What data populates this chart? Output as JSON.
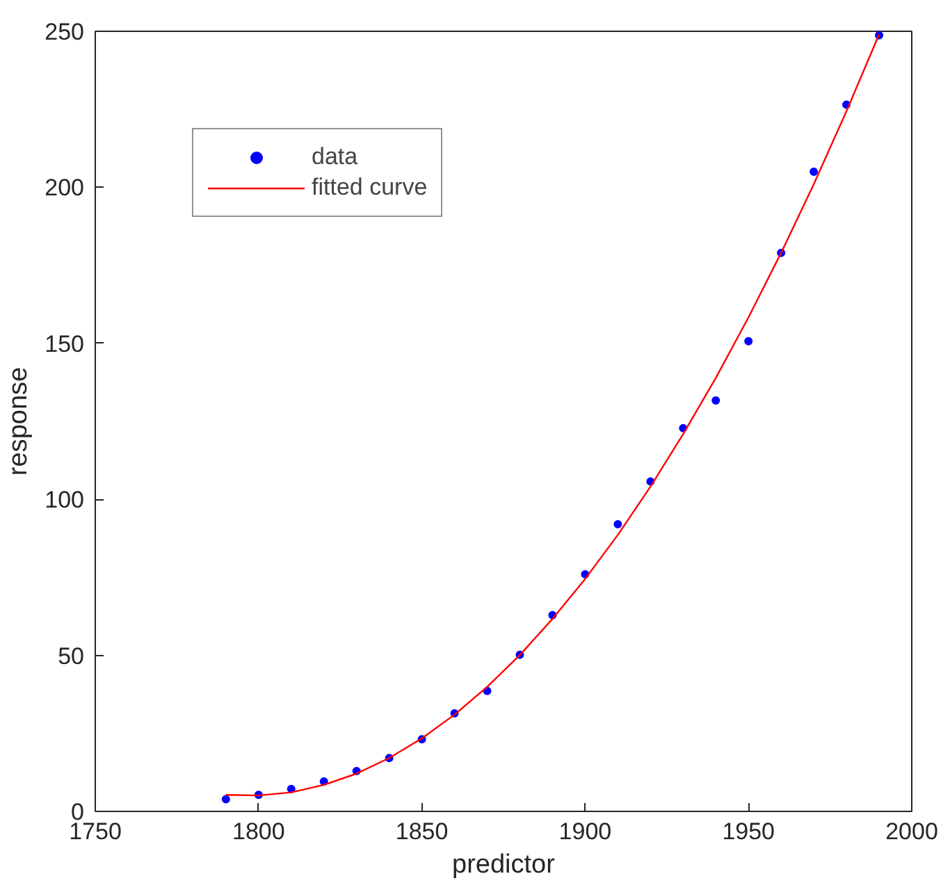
{
  "chart_data": {
    "type": "scatter",
    "xlabel": "predictor",
    "ylabel": "response",
    "xlim": [
      1750,
      2000
    ],
    "ylim": [
      0,
      250
    ],
    "xticks": [
      1750,
      1800,
      1850,
      1900,
      1950,
      2000
    ],
    "yticks": [
      0,
      50,
      100,
      150,
      200,
      250
    ],
    "grid": false,
    "legend": "top left",
    "series": [
      {
        "name": "data",
        "marker": "circle",
        "color": "#0000ff",
        "x": [
          1790,
          1800,
          1810,
          1820,
          1830,
          1840,
          1850,
          1860,
          1870,
          1880,
          1890,
          1900,
          1910,
          1920,
          1930,
          1940,
          1950,
          1960,
          1970,
          1980,
          1990
        ],
        "values": [
          3.9,
          5.3,
          7.2,
          9.6,
          12.9,
          17.1,
          23.1,
          31.4,
          38.6,
          50.2,
          62.9,
          76.0,
          92.0,
          105.7,
          122.8,
          131.7,
          150.7,
          179.0,
          205.0,
          226.5,
          248.7
        ]
      },
      {
        "name": "fitted curve",
        "type": "line",
        "line_style": "solid",
        "color": "#ff0000",
        "x": [
          1790,
          1800,
          1810,
          1820,
          1830,
          1840,
          1850,
          1860,
          1870,
          1880,
          1890,
          1900,
          1910,
          1920,
          1930,
          1940,
          1950,
          1960,
          1970,
          1980,
          1990
        ],
        "values": [
          5.3,
          5.1,
          6.1,
          8.5,
          12.1,
          17.1,
          23.4,
          31.0,
          39.9,
          50.1,
          61.7,
          74.5,
          88.6,
          104.1,
          120.9,
          138.9,
          158.3,
          179.0,
          201.0,
          224.4,
          249.0
        ]
      }
    ]
  }
}
